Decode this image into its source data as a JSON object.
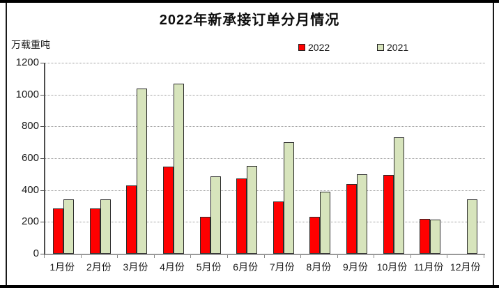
{
  "frame": {
    "background": "#ffffff",
    "border_color": "#000000"
  },
  "chart_data": {
    "type": "bar",
    "title": "2022年新承接订单分月情况",
    "unit_label": "万载重吨",
    "categories": [
      "1月份",
      "2月份",
      "3月份",
      "4月份",
      "5月份",
      "6月份",
      "7月份",
      "8月份",
      "9月份",
      "10月份",
      "11月份",
      "12月份"
    ],
    "series": [
      {
        "name": "2022",
        "color": "#ff0000",
        "values": [
          285,
          285,
          430,
          548,
          230,
          475,
          327,
          233,
          440,
          493,
          220,
          0
        ]
      },
      {
        "name": "2021",
        "color": "#d7e4bc",
        "values": [
          340,
          342,
          1040,
          1067,
          488,
          550,
          700,
          390,
          500,
          732,
          216,
          340
        ]
      }
    ],
    "ylim": [
      0,
      1200
    ],
    "y_ticks": [
      0,
      200,
      400,
      600,
      800,
      1000,
      1200
    ],
    "grid": "horizontal-dotted",
    "gridline_color": "#999999",
    "bar_border_color": "#2b2b2b",
    "legend_position": "top",
    "xlabel": "",
    "ylabel": ""
  }
}
